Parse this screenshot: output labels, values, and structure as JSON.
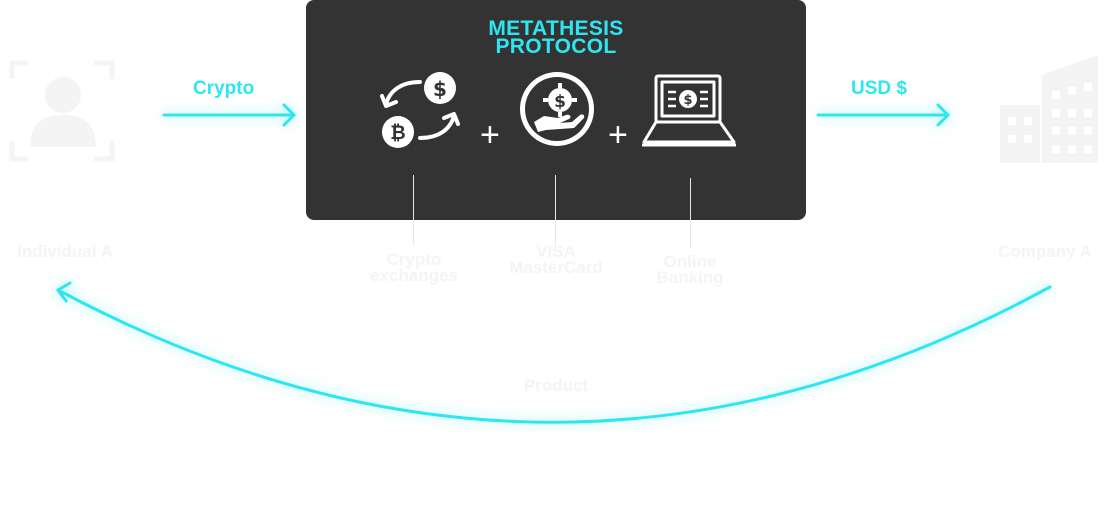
{
  "protocol": {
    "title_line1": "METATHESIS",
    "title_line2": "PROTOCOL"
  },
  "flow": {
    "left_arrow_label": "Crypto",
    "right_arrow_label": "USD $",
    "bottom_label": "Product"
  },
  "nodes": {
    "individual": "Individual A",
    "company": "Company A"
  },
  "methods": [
    {
      "line1": "Crypto",
      "line2": "exchanges"
    },
    {
      "line1": "VISA",
      "line2": "MasterCard"
    },
    {
      "line1": "Online",
      "line2": "Banking"
    }
  ],
  "plus_symbol": "+",
  "colors": {
    "accent": "#2ee6f2",
    "box": "#333333",
    "faint": "#f4f4f4"
  }
}
